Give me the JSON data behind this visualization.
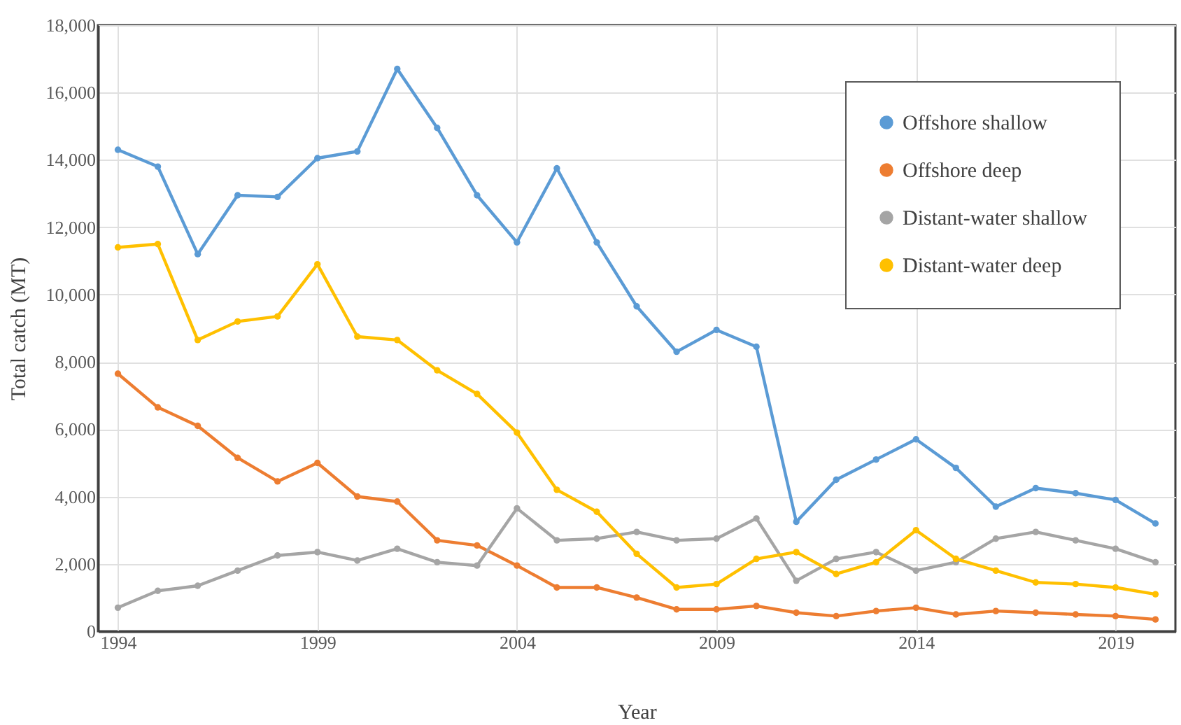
{
  "chart_data": {
    "type": "line",
    "xlabel": "Year",
    "ylabel": "Total catch (MT)",
    "x": [
      1994,
      1995,
      1996,
      1997,
      1998,
      1999,
      2000,
      2001,
      2002,
      2003,
      2004,
      2005,
      2006,
      2007,
      2008,
      2009,
      2010,
      2011,
      2012,
      2013,
      2014,
      2015,
      2016,
      2017,
      2018,
      2019,
      2020
    ],
    "series": [
      {
        "name": "Offshore shallow",
        "color": "#5b9bd5",
        "values": [
          14300,
          13800,
          11200,
          12950,
          12900,
          14050,
          14250,
          16700,
          14950,
          12950,
          11550,
          13750,
          11550,
          9650,
          8300,
          8950,
          8450,
          3250,
          4500,
          5100,
          5700,
          4850,
          3700,
          4250,
          4100,
          3900,
          3200
        ]
      },
      {
        "name": "Offshore deep",
        "color": "#ed7d31",
        "values": [
          7650,
          6650,
          6100,
          5150,
          4450,
          5000,
          4000,
          3850,
          2700,
          2550,
          1950,
          1300,
          1300,
          1000,
          650,
          650,
          750,
          550,
          450,
          600,
          700,
          500,
          600,
          550,
          500,
          450,
          350
        ]
      },
      {
        "name": "Distant-water shallow",
        "color": "#a5a5a5",
        "values": [
          700,
          1200,
          1350,
          1800,
          2250,
          2350,
          2100,
          2450,
          2050,
          1950,
          3650,
          2700,
          2750,
          2950,
          2700,
          2750,
          3350,
          1500,
          2150,
          2350,
          1800,
          2050,
          2750,
          2950,
          2700,
          2450,
          2050
        ]
      },
      {
        "name": "Distant-water deep",
        "color": "#ffc000",
        "values": [
          11400,
          11500,
          8650,
          9200,
          9350,
          10900,
          8750,
          8650,
          7750,
          7050,
          5900,
          4200,
          3550,
          2300,
          1300,
          1400,
          2150,
          2350,
          1700,
          2050,
          3000,
          2150,
          1800,
          1450,
          1400,
          1300,
          1100
        ]
      }
    ],
    "xlim": [
      1993.5,
      2020.5
    ],
    "xticks": [
      1994,
      1999,
      2004,
      2009,
      2014,
      2019
    ],
    "ylim": [
      0,
      18000
    ],
    "yticks": [
      0,
      {
        "value": 2000,
        "label": "2,000"
      },
      {
        "value": 4000,
        "label": "4,000"
      },
      {
        "value": 6000,
        "label": "6,000"
      },
      {
        "value": 8000,
        "label": "8,000"
      },
      {
        "value": 10000,
        "label": "10,000"
      },
      {
        "value": 12000,
        "label": "12,000"
      },
      {
        "value": 14000,
        "label": "14,000"
      },
      {
        "value": 16000,
        "label": "16,000"
      },
      {
        "value": 18000,
        "label": "18,000"
      }
    ],
    "grid": true,
    "legend": "top right",
    "marker": "circle",
    "line_style": "solid"
  }
}
